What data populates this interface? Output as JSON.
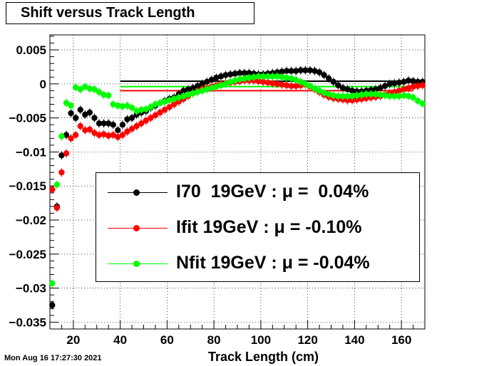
{
  "chart_data": {
    "type": "scatter",
    "title": "Shift versus Track Length",
    "xlabel": "Track Length (cm)",
    "ylabel": "",
    "xlim": [
      10,
      170
    ],
    "ylim": [
      -0.036,
      0.0072
    ],
    "xticks": [
      20,
      40,
      60,
      80,
      100,
      120,
      140,
      160
    ],
    "yticks": [
      -0.035,
      -0.03,
      -0.025,
      -0.02,
      -0.015,
      -0.01,
      -0.005,
      0,
      0.005
    ],
    "ytick_labels": [
      "−0.035",
      "−0.03",
      "−0.025",
      "−0.02",
      "−0.015",
      "−0.01",
      "−0.005",
      "0",
      "0.005"
    ],
    "grid": true,
    "legend_position": "lower-right",
    "series": [
      {
        "name": "I70  19GeV : μ =  0.04%",
        "color": "#000000",
        "mean": 0.0004,
        "mean_range": [
          40,
          165
        ],
        "x": [
          11,
          13,
          15,
          17,
          19,
          21,
          23,
          25,
          27,
          29,
          31,
          33,
          35,
          37,
          39,
          41,
          43,
          45,
          47,
          49,
          51,
          53,
          55,
          57,
          59,
          61,
          63,
          65,
          67,
          69,
          71,
          73,
          75,
          77,
          79,
          81,
          83,
          85,
          87,
          89,
          91,
          93,
          95,
          97,
          99,
          101,
          103,
          105,
          107,
          109,
          111,
          113,
          115,
          117,
          119,
          121,
          123,
          125,
          127,
          129,
          131,
          133,
          135,
          137,
          139,
          141,
          143,
          145,
          147,
          149,
          151,
          153,
          155,
          157,
          159,
          161,
          163,
          165,
          167,
          169
        ],
        "y": [
          -0.0325,
          -0.018,
          -0.0105,
          -0.0075,
          -0.0043,
          -0.005,
          -0.0038,
          -0.0045,
          -0.0042,
          -0.005,
          -0.0058,
          -0.0058,
          -0.0058,
          -0.006,
          -0.0068,
          -0.006,
          -0.0052,
          -0.005,
          -0.0045,
          -0.0042,
          -0.004,
          -0.0035,
          -0.0032,
          -0.0028,
          -0.0025,
          -0.0022,
          -0.002,
          -0.0015,
          -0.001,
          -0.0008,
          -0.0006,
          -0.0003,
          0,
          0.0003,
          0.0006,
          0.0009,
          0.0011,
          0.0013,
          0.0014,
          0.0015,
          0.0016,
          0.0016,
          0.0016,
          0.0015,
          0.0014,
          0.0014,
          0.0015,
          0.0016,
          0.0017,
          0.0018,
          0.0019,
          0.0019,
          0.0019,
          0.002,
          0.002,
          0.002,
          0.0019,
          0.0017,
          0.0013,
          0.0008,
          0.0003,
          -0.0002,
          -0.0006,
          -0.0008,
          -0.001,
          -0.0011,
          -0.0011,
          -0.001,
          -0.0009,
          -0.0008,
          -0.0006,
          -0.0003,
          0,
          0.0001,
          0.0002,
          0.0003,
          0.0005,
          0.0004,
          0.0003,
          0.0003
        ]
      },
      {
        "name": "Ifit 19GeV : μ = -0.10%",
        "color": "#ff0000",
        "mean": -0.001,
        "mean_range": [
          40,
          165
        ],
        "x": [
          11,
          13,
          15,
          17,
          19,
          21,
          23,
          25,
          27,
          29,
          31,
          33,
          35,
          37,
          39,
          41,
          43,
          45,
          47,
          49,
          51,
          53,
          55,
          57,
          59,
          61,
          63,
          65,
          67,
          69,
          71,
          73,
          75,
          77,
          79,
          81,
          83,
          85,
          87,
          89,
          91,
          93,
          95,
          97,
          99,
          101,
          103,
          105,
          107,
          109,
          111,
          113,
          115,
          117,
          119,
          121,
          123,
          125,
          127,
          129,
          131,
          133,
          135,
          137,
          139,
          141,
          143,
          145,
          147,
          149,
          151,
          153,
          155,
          157,
          159,
          161,
          163,
          165,
          167,
          169
        ],
        "y": [
          -0.0155,
          -0.0182,
          -0.013,
          -0.0102,
          -0.008,
          -0.0075,
          -0.0062,
          -0.0068,
          -0.0067,
          -0.0072,
          -0.0075,
          -0.0074,
          -0.0076,
          -0.0075,
          -0.0078,
          -0.0075,
          -0.007,
          -0.0066,
          -0.0062,
          -0.0058,
          -0.0054,
          -0.005,
          -0.0046,
          -0.0042,
          -0.0038,
          -0.0034,
          -0.003,
          -0.0026,
          -0.0022,
          -0.0018,
          -0.0014,
          -0.0011,
          -0.0008,
          -0.0006,
          -0.0004,
          -0.0002,
          0,
          0.0001,
          0.0002,
          0.0003,
          0.0004,
          0.0005,
          0.0005,
          0.0005,
          0.0004,
          0.0003,
          0.0002,
          0.0001,
          0,
          -0.0001,
          -0.0002,
          -0.0003,
          -0.0003,
          -0.0002,
          -0.0001,
          -0.0004,
          -0.0008,
          -0.0012,
          -0.0016,
          -0.0019,
          -0.0021,
          -0.0022,
          -0.0023,
          -0.0024,
          -0.0024,
          -0.0023,
          -0.0022,
          -0.0021,
          -0.002,
          -0.0019,
          -0.0018,
          -0.0016,
          -0.0014,
          -0.0012,
          -0.001,
          -0.0008,
          -0.0006,
          -0.0004,
          -0.0003,
          -0.0002
        ]
      },
      {
        "name": "Nfit 19GeV : μ = -0.04%",
        "color": "#00ff00",
        "mean": -0.0004,
        "mean_range": [
          40,
          165
        ],
        "x": [
          11,
          13,
          15,
          17,
          19,
          21,
          23,
          25,
          27,
          29,
          31,
          33,
          35,
          37,
          39,
          41,
          43,
          45,
          47,
          49,
          51,
          53,
          55,
          57,
          59,
          61,
          63,
          65,
          67,
          69,
          71,
          73,
          75,
          77,
          79,
          81,
          83,
          85,
          87,
          89,
          91,
          93,
          95,
          97,
          99,
          101,
          103,
          105,
          107,
          109,
          111,
          113,
          115,
          117,
          119,
          121,
          123,
          125,
          127,
          129,
          131,
          133,
          135,
          137,
          139,
          141,
          143,
          145,
          147,
          149,
          151,
          153,
          155,
          157,
          159,
          161,
          163,
          165,
          167,
          169
        ],
        "y": [
          -0.0293,
          -0.0148,
          -0.0077,
          -0.0028,
          -0.0032,
          -0.0005,
          -0.0008,
          -0.0004,
          -0.0007,
          -0.0008,
          -0.0012,
          -0.0016,
          -0.0017,
          -0.003,
          -0.0032,
          -0.0033,
          -0.0032,
          -0.0035,
          -0.004,
          -0.0038,
          -0.0037,
          -0.0034,
          -0.003,
          -0.0028,
          -0.0026,
          -0.0024,
          -0.0022,
          -0.002,
          -0.0018,
          -0.0016,
          -0.0014,
          -0.0012,
          -0.001,
          -0.0008,
          -0.0006,
          -0.0004,
          -0.0002,
          0,
          0.0003,
          0.0005,
          0.0007,
          0.0008,
          0.0009,
          0.001,
          0.0011,
          0.0011,
          0.0011,
          0.0011,
          0.0011,
          0.001,
          0.0009,
          0.0008,
          0.0006,
          0.0003,
          0,
          -0.0003,
          -0.0007,
          -0.001,
          -0.0013,
          -0.0015,
          -0.0017,
          -0.0018,
          -0.0018,
          -0.0018,
          -0.0018,
          -0.0017,
          -0.0016,
          -0.0015,
          -0.0015,
          -0.0015,
          -0.0016,
          -0.0017,
          -0.0018,
          -0.0018,
          -0.0018,
          -0.0017,
          -0.0018,
          -0.002,
          -0.0025,
          -0.0029
        ]
      }
    ]
  },
  "timestamp": "Mon Aug 16 17:27:30 2021"
}
